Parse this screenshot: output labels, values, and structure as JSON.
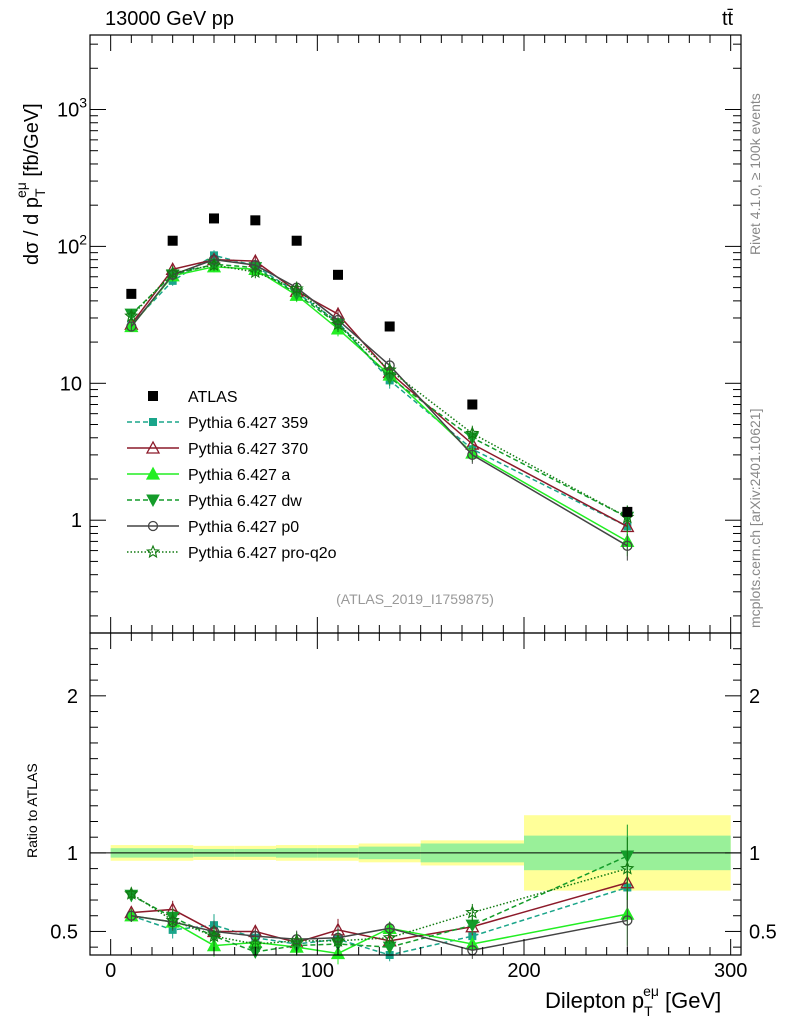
{
  "header": {
    "left": "13000 GeV pp",
    "right": "tt̄"
  },
  "side": {
    "rivet": "Rivet 4.1.0, ≥ 100k events",
    "mcplots": "mcplots.cern.ch [arXiv:2401.10621]"
  },
  "analysis_id": "(ATLAS_2019_I1759875)",
  "axes": {
    "ylabel_main": "dσ / d p",
    "ylabel_sub": "T",
    "ylabel_sup": "eμ",
    "ylabel_unit": " [fb/GeV]",
    "ylabel_ratio": "Ratio to ATLAS",
    "xlabel": "Dilepton p",
    "xlabel_sub": "T",
    "xlabel_sup": "eμ",
    "xlabel_unit": "  [GeV]"
  },
  "ticks": {
    "main_y": [
      "1",
      "10",
      "10",
      "10"
    ],
    "main_y_exp": [
      "",
      "",
      "2",
      "3"
    ],
    "ratio_y": [
      "0.5",
      "1",
      "2"
    ],
    "x": [
      "0",
      "100",
      "200",
      "300"
    ]
  },
  "legend": [
    {
      "label": "ATLAS"
    },
    {
      "label": "Pythia 6.427 359"
    },
    {
      "label": "Pythia 6.427 370"
    },
    {
      "label": "Pythia 6.427 a"
    },
    {
      "label": "Pythia 6.427 dw"
    },
    {
      "label": "Pythia 6.427 p0"
    },
    {
      "label": "Pythia 6.427 pro-q2o"
    }
  ],
  "chart_data": {
    "type": "line",
    "title": "13000 GeV pp",
    "xlabel": "Dilepton pT eμ [GeV]",
    "ylabel": "dσ / d pT eμ [fb/GeV]",
    "x_range": [
      -10,
      305
    ],
    "y_log_range": [
      0.15,
      3500
    ],
    "ratio_range": [
      0.35,
      2.4
    ],
    "x": [
      10,
      30,
      50,
      70,
      90,
      110,
      135,
      175,
      250
    ],
    "bin_edges": [
      0,
      20,
      40,
      60,
      80,
      100,
      120,
      150,
      200,
      300
    ],
    "data": {
      "name": "ATLAS",
      "values": [
        45,
        110,
        160,
        155,
        110,
        62,
        26,
        7,
        1.15
      ]
    },
    "band_inner": [
      0.03,
      0.03,
      0.025,
      0.025,
      0.03,
      0.03,
      0.04,
      0.06,
      0.11
    ],
    "band_outer": [
      0.05,
      0.05,
      0.045,
      0.045,
      0.05,
      0.05,
      0.06,
      0.08,
      0.24
    ],
    "series": [
      {
        "name": "Pythia 6.427 359",
        "color": "#1aa58a",
        "dash": "5,3",
        "marker": "square",
        "values": [
          27,
          56,
          86,
          72,
          46,
          28,
          10.5,
          3.3,
          0.9
        ],
        "ratio": [
          0.6,
          0.51,
          0.54,
          0.46,
          0.42,
          0.45,
          0.35,
          0.47,
          0.78
        ]
      },
      {
        "name": "Pythia 6.427 370",
        "color": "#8c1a2a",
        "dash": "",
        "marker": "triangle-open",
        "values": [
          27,
          68,
          80,
          78,
          47,
          32,
          12,
          3.6,
          0.9
        ],
        "ratio": [
          0.62,
          0.64,
          0.5,
          0.5,
          0.43,
          0.51,
          0.44,
          0.53,
          0.81
        ]
      },
      {
        "name": "Pythia 6.427 a",
        "color": "#22ee22",
        "dash": "",
        "marker": "triangle",
        "values": [
          26,
          61,
          71,
          68,
          44,
          25,
          11.5,
          3.1,
          0.7
        ],
        "ratio": [
          0.6,
          0.56,
          0.41,
          0.43,
          0.4,
          0.36,
          0.52,
          0.42,
          0.61
        ]
      },
      {
        "name": "Pythia 6.427 dw",
        "color": "#149c2a",
        "dash": "5,3",
        "marker": "triangle-down",
        "values": [
          32,
          62,
          74,
          70,
          45,
          27,
          11,
          4,
          1.05
        ],
        "ratio": [
          0.73,
          0.59,
          0.47,
          0.37,
          0.41,
          0.42,
          0.4,
          0.54,
          0.98
        ]
      },
      {
        "name": "Pythia 6.427 p0",
        "color": "#444444",
        "dash": "",
        "marker": "circle-open",
        "values": [
          26,
          62,
          80,
          73,
          50,
          29,
          13.5,
          3,
          0.65
        ],
        "ratio": [
          0.6,
          0.56,
          0.5,
          0.47,
          0.45,
          0.46,
          0.52,
          0.38,
          0.57
        ]
      },
      {
        "name": "Pythia 6.427 pro-q2o",
        "color": "#117a11",
        "dash": "1.5,2",
        "marker": "star",
        "values": [
          31,
          64,
          73,
          65,
          49,
          27,
          12.5,
          4.3,
          1.05
        ],
        "ratio": [
          0.74,
          0.57,
          0.47,
          0.42,
          0.44,
          0.44,
          0.46,
          0.62,
          0.9
        ]
      }
    ]
  }
}
